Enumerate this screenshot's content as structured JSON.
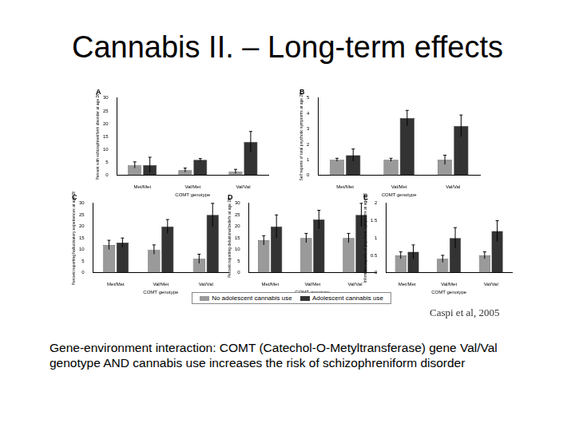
{
  "slide": {
    "title": "Cannabis II. – Long-term effects",
    "caption": "Gene-environment interaction: COMT (Catechol-O-Metyltransferase) gene Val/Val genotype AND cannabis use increases the risk of schizophreniform disorder",
    "citation": "Caspi et al, 2005"
  },
  "chart_data": [
    {
      "type": "bar",
      "title": "A",
      "x_label": "COMT genotype",
      "y_label": "Percent with schizophreniform disorder at age 26",
      "categories": [
        "Met/Met",
        "Val/Met",
        "Val/Val"
      ],
      "series": [
        {
          "name": "No adolescent cannabis use",
          "color": "#9a9a9a",
          "values": [
            4,
            2,
            1.5
          ],
          "errors": [
            1.2,
            0.8,
            0.8
          ]
        },
        {
          "name": "Adolescent cannabis use",
          "color": "#333333",
          "values": [
            4,
            6,
            13
          ],
          "errors": [
            3,
            0.5,
            4
          ]
        }
      ],
      "ylim": [
        0,
        30
      ],
      "yticks": [
        0,
        5,
        10,
        15,
        20,
        25,
        30
      ],
      "grid": false
    },
    {
      "type": "bar",
      "title": "B",
      "x_label": "COMT genotype",
      "y_label": "Self reports of total psychotic symptoms at age 26",
      "categories": [
        "Met/Met",
        "Val/Met",
        "Val/Val"
      ],
      "series": [
        {
          "name": "No adolescent cannabis use",
          "color": "#9a9a9a",
          "values": [
            1,
            1,
            1
          ],
          "errors": [
            0.1,
            0.1,
            0.3
          ]
        },
        {
          "name": "Adolescent cannabis use",
          "color": "#333333",
          "values": [
            1.3,
            3.7,
            3.2
          ],
          "errors": [
            0.4,
            0.5,
            0.7
          ]
        }
      ],
      "ylim": [
        0,
        5
      ],
      "yticks": [
        0,
        1,
        2,
        3,
        4,
        5
      ],
      "grid": false
    },
    {
      "type": "bar",
      "title": "C",
      "x_label": "COMT genotype",
      "y_label": "Percent reporting hallucinatory experiences at age 26",
      "categories": [
        "Met/Met",
        "Val/Met",
        "Val/Val"
      ],
      "series": [
        {
          "name": "No adolescent cannabis use",
          "color": "#9a9a9a",
          "values": [
            12,
            10,
            6
          ],
          "errors": [
            2,
            2,
            2
          ]
        },
        {
          "name": "Adolescent cannabis use",
          "color": "#333333",
          "values": [
            13,
            20,
            25
          ],
          "errors": [
            2,
            3,
            5
          ]
        }
      ],
      "ylim": [
        0,
        30
      ],
      "yticks": [
        0,
        5,
        10,
        15,
        20,
        25,
        30
      ],
      "grid": false
    },
    {
      "type": "bar",
      "title": "D",
      "x_label": "COMT genotype",
      "y_label": "Percent reporting delusional beliefs at age 26",
      "categories": [
        "Met/Met",
        "Val/Met",
        "Val/Val"
      ],
      "series": [
        {
          "name": "No adolescent cannabis use",
          "color": "#9a9a9a",
          "values": [
            14,
            15,
            15
          ],
          "errors": [
            2,
            2,
            2
          ]
        },
        {
          "name": "Adolescent cannabis use",
          "color": "#333333",
          "values": [
            20,
            23,
            25
          ],
          "errors": [
            5,
            4,
            5
          ]
        }
      ],
      "ylim": [
        0,
        30
      ],
      "yticks": [
        0,
        5,
        10,
        15,
        20,
        25,
        30
      ],
      "grid": false
    },
    {
      "type": "bar",
      "title": "E",
      "x_label": "COMT genotype",
      "y_label": "Informant reports of psychotic symptoms at age 26",
      "categories": [
        "Met/Met",
        "Val/Met",
        "Val/Val"
      ],
      "series": [
        {
          "name": "No adolescent cannabis use",
          "color": "#9a9a9a",
          "values": [
            0.5,
            0.4,
            0.5
          ],
          "errors": [
            0.1,
            0.1,
            0.1
          ]
        },
        {
          "name": "Adolescent cannabis use",
          "color": "#333333",
          "values": [
            0.6,
            1.0,
            1.2
          ],
          "errors": [
            0.2,
            0.3,
            0.3
          ]
        }
      ],
      "ylim": [
        0,
        2
      ],
      "yticks": [
        0,
        0.5,
        1,
        1.5,
        2
      ],
      "grid": false
    }
  ]
}
